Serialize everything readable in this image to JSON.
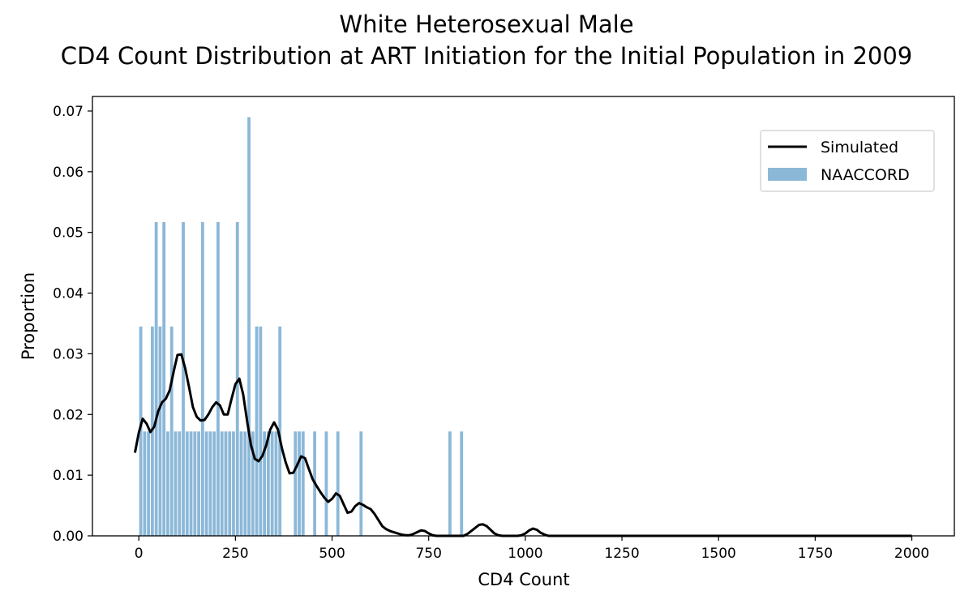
{
  "chart_data": {
    "type": "bar",
    "title_line1": "White Heterosexual Male",
    "title_line2": "CD4 Count Distribution at ART Initiation for the Initial Population in 2009",
    "xlabel": "CD4 Count",
    "ylabel": "Proportion",
    "xlim": [
      -120,
      2110
    ],
    "ylim": [
      0,
      0.0724
    ],
    "xticks": [
      0,
      250,
      500,
      750,
      1000,
      1250,
      1500,
      1750,
      2000
    ],
    "xtick_labels": [
      "0",
      "250",
      "500",
      "750",
      "1000",
      "1250",
      "1500",
      "1750",
      "2000"
    ],
    "yticks": [
      0.0,
      0.01,
      0.02,
      0.03,
      0.04,
      0.05,
      0.06,
      0.07
    ],
    "ytick_labels": [
      "0.00",
      "0.01",
      "0.02",
      "0.03",
      "0.04",
      "0.05",
      "0.06",
      "0.07"
    ],
    "bin_width": 10,
    "legend": {
      "position": "upper right",
      "entries": [
        "Simulated",
        "NAACCORD"
      ]
    },
    "colors": {
      "hist": "#8cb8d8",
      "line": "#000000",
      "axis": "#000000"
    },
    "series": [
      {
        "name": "NAACCORD",
        "kind": "histogram",
        "x": [
          0,
          10,
          20,
          30,
          40,
          50,
          60,
          70,
          80,
          90,
          100,
          110,
          120,
          130,
          140,
          150,
          160,
          170,
          180,
          190,
          200,
          210,
          220,
          230,
          240,
          250,
          260,
          270,
          280,
          290,
          300,
          310,
          320,
          330,
          340,
          350,
          360,
          400,
          410,
          420,
          450,
          480,
          510,
          570,
          800,
          830
        ],
        "values": [
          0.0345,
          0.0172,
          0.0172,
          0.0345,
          0.0517,
          0.0345,
          0.0517,
          0.0172,
          0.0345,
          0.0172,
          0.0172,
          0.0517,
          0.0172,
          0.0172,
          0.0172,
          0.0172,
          0.0517,
          0.0172,
          0.0172,
          0.0172,
          0.0517,
          0.0172,
          0.0172,
          0.0172,
          0.0172,
          0.0517,
          0.0172,
          0.0172,
          0.069,
          0.0172,
          0.0345,
          0.0345,
          0.0172,
          0.0172,
          0.0172,
          0.0172,
          0.0345,
          0.0172,
          0.0172,
          0.0172,
          0.0172,
          0.0172,
          0.0172,
          0.0172,
          0.0172,
          0.0172
        ]
      },
      {
        "name": "Simulated",
        "kind": "line",
        "x": [
          -10,
          0,
          10,
          20,
          30,
          40,
          50,
          60,
          70,
          80,
          90,
          100,
          110,
          120,
          130,
          140,
          150,
          160,
          170,
          180,
          190,
          200,
          210,
          220,
          230,
          240,
          250,
          260,
          270,
          280,
          290,
          300,
          310,
          320,
          330,
          340,
          350,
          360,
          370,
          380,
          390,
          400,
          410,
          420,
          430,
          440,
          450,
          460,
          470,
          480,
          490,
          500,
          510,
          520,
          530,
          540,
          550,
          560,
          570,
          580,
          590,
          600,
          610,
          620,
          630,
          640,
          650,
          660,
          670,
          680,
          690,
          700,
          710,
          720,
          730,
          740,
          750,
          760,
          770,
          780,
          790,
          800,
          810,
          820,
          830,
          840,
          850,
          860,
          870,
          880,
          890,
          900,
          910,
          920,
          930,
          940,
          950,
          960,
          970,
          980,
          990,
          1000,
          1010,
          1020,
          1030,
          1040,
          1050,
          1060,
          1080,
          1100,
          1200,
          1300,
          1400,
          1500,
          1600,
          1700,
          1800,
          1900,
          2000
        ],
        "values": [
          0.0137,
          0.017,
          0.0193,
          0.0185,
          0.0171,
          0.018,
          0.0205,
          0.022,
          0.0226,
          0.024,
          0.027,
          0.0298,
          0.0299,
          0.0276,
          0.0245,
          0.0212,
          0.0196,
          0.019,
          0.0191,
          0.02,
          0.0212,
          0.022,
          0.0215,
          0.02,
          0.02,
          0.0226,
          0.025,
          0.0259,
          0.0233,
          0.019,
          0.015,
          0.0127,
          0.0123,
          0.0132,
          0.015,
          0.0175,
          0.0187,
          0.0175,
          0.0145,
          0.0121,
          0.0103,
          0.0104,
          0.0117,
          0.0131,
          0.0128,
          0.011,
          0.0093,
          0.0082,
          0.0072,
          0.0063,
          0.0056,
          0.0061,
          0.007,
          0.0066,
          0.0052,
          0.0038,
          0.004,
          0.0049,
          0.0054,
          0.0051,
          0.0047,
          0.0044,
          0.0036,
          0.0026,
          0.0016,
          0.0011,
          0.0008,
          0.0006,
          0.0004,
          0.0002,
          0.0001,
          0.0001,
          0.0003,
          0.0006,
          0.0009,
          0.0008,
          0.0004,
          0.0001,
          0.0,
          0.0,
          0.0,
          0.0,
          0.0,
          0.0,
          0.0,
          0.0,
          0.0003,
          0.0008,
          0.0013,
          0.0018,
          0.0019,
          0.0016,
          0.001,
          0.0004,
          0.0001,
          0.0,
          0.0,
          0.0,
          0.0,
          0.0,
          0.0001,
          0.0004,
          0.0009,
          0.0012,
          0.001,
          0.0005,
          0.0002,
          0.0,
          0.0,
          0.0,
          0.0,
          0.0,
          0.0,
          0.0,
          0.0,
          0.0,
          0.0,
          0.0,
          0.0
        ]
      }
    ]
  }
}
